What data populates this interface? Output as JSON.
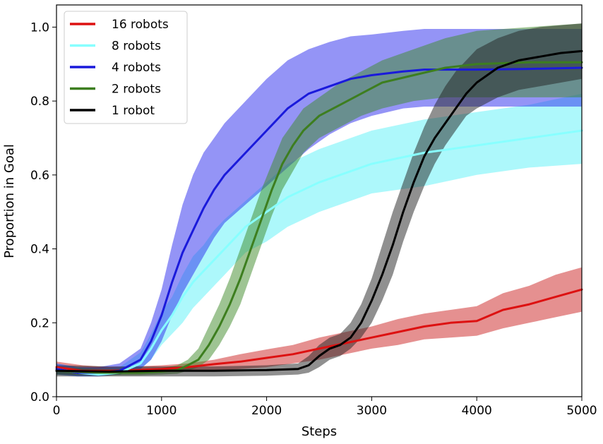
{
  "chart_data": {
    "type": "line",
    "title": "",
    "xlabel": "Steps",
    "ylabel": "Proportion in Goal",
    "xlim": [
      0,
      5000
    ],
    "ylim": [
      0.0,
      1.06
    ],
    "x_ticks": [
      0,
      1000,
      2000,
      3000,
      4000,
      5000
    ],
    "y_ticks": [
      0.0,
      0.2,
      0.4,
      0.6,
      0.8,
      1.0
    ],
    "x_tick_labels": [
      "0",
      "1000",
      "2000",
      "3000",
      "4000",
      "5000"
    ],
    "y_tick_labels": [
      "0.0",
      "0.2",
      "0.4",
      "0.6",
      "0.8",
      "1.0"
    ],
    "grid": false,
    "legend_position": "top-left",
    "band_opacity": 0.5,
    "series": [
      {
        "name": "16 robots",
        "color": "#dd1111",
        "band_color": "#cc2222",
        "x": [
          0,
          250,
          500,
          750,
          1000,
          1250,
          1500,
          1750,
          2000,
          2250,
          2500,
          2750,
          3000,
          3250,
          3500,
          3750,
          4000,
          4250,
          4500,
          4750,
          5000
        ],
        "mean": [
          0.08,
          0.07,
          0.07,
          0.072,
          0.075,
          0.08,
          0.088,
          0.095,
          0.105,
          0.115,
          0.13,
          0.145,
          0.16,
          0.175,
          0.19,
          0.2,
          0.205,
          0.235,
          0.25,
          0.27,
          0.29
        ],
        "lower": [
          0.06,
          0.06,
          0.06,
          0.065,
          0.068,
          0.068,
          0.07,
          0.075,
          0.08,
          0.09,
          0.1,
          0.115,
          0.13,
          0.14,
          0.155,
          0.16,
          0.165,
          0.185,
          0.2,
          0.215,
          0.23
        ],
        "upper": [
          0.095,
          0.085,
          0.08,
          0.082,
          0.085,
          0.09,
          0.1,
          0.115,
          0.128,
          0.14,
          0.16,
          0.175,
          0.19,
          0.21,
          0.225,
          0.235,
          0.245,
          0.28,
          0.3,
          0.33,
          0.35
        ]
      },
      {
        "name": "8 robots",
        "color": "#88ffff",
        "band_color": "#5cf2f7",
        "x": [
          0,
          200,
          400,
          600,
          800,
          900,
          1000,
          1100,
          1200,
          1300,
          1400,
          1500,
          1600,
          1800,
          2000,
          2200,
          2500,
          2800,
          3000,
          3500,
          4000,
          4500,
          5000
        ],
        "mean": [
          0.075,
          0.065,
          0.06,
          0.065,
          0.09,
          0.13,
          0.18,
          0.22,
          0.27,
          0.31,
          0.34,
          0.37,
          0.4,
          0.46,
          0.5,
          0.54,
          0.58,
          0.61,
          0.63,
          0.66,
          0.68,
          0.7,
          0.72
        ],
        "lower": [
          0.06,
          0.055,
          0.055,
          0.06,
          0.075,
          0.1,
          0.14,
          0.17,
          0.2,
          0.24,
          0.27,
          0.3,
          0.33,
          0.39,
          0.42,
          0.46,
          0.5,
          0.53,
          0.55,
          0.57,
          0.6,
          0.62,
          0.63
        ],
        "upper": [
          0.09,
          0.08,
          0.075,
          0.08,
          0.12,
          0.17,
          0.23,
          0.27,
          0.33,
          0.38,
          0.41,
          0.45,
          0.48,
          0.53,
          0.58,
          0.63,
          0.67,
          0.7,
          0.72,
          0.75,
          0.77,
          0.79,
          0.82
        ]
      },
      {
        "name": "4 robots",
        "color": "#1a1adb",
        "band_color": "#2a2aee",
        "x": [
          0,
          200,
          400,
          600,
          800,
          900,
          1000,
          1100,
          1200,
          1300,
          1400,
          1500,
          1600,
          1800,
          2000,
          2200,
          2400,
          2600,
          2800,
          3000,
          3300,
          3500,
          4000,
          4500,
          5000
        ],
        "mean": [
          0.075,
          0.065,
          0.065,
          0.07,
          0.1,
          0.15,
          0.22,
          0.31,
          0.39,
          0.45,
          0.51,
          0.56,
          0.6,
          0.66,
          0.72,
          0.78,
          0.82,
          0.84,
          0.86,
          0.87,
          0.88,
          0.885,
          0.885,
          0.887,
          0.89
        ],
        "lower": [
          0.06,
          0.055,
          0.055,
          0.06,
          0.075,
          0.1,
          0.15,
          0.22,
          0.28,
          0.33,
          0.38,
          0.43,
          0.47,
          0.52,
          0.57,
          0.62,
          0.67,
          0.71,
          0.74,
          0.76,
          0.78,
          0.785,
          0.785,
          0.785,
          0.785
        ],
        "upper": [
          0.09,
          0.08,
          0.08,
          0.09,
          0.13,
          0.2,
          0.29,
          0.41,
          0.52,
          0.6,
          0.66,
          0.7,
          0.74,
          0.8,
          0.86,
          0.91,
          0.94,
          0.96,
          0.975,
          0.98,
          0.99,
          0.995,
          0.995,
          0.995,
          0.995
        ]
      },
      {
        "name": "2 robots",
        "color": "#3d7e1f",
        "band_color": "#3d8a28",
        "x": [
          0,
          400,
          800,
          1000,
          1150,
          1250,
          1350,
          1450,
          1550,
          1650,
          1750,
          1850,
          1950,
          2050,
          2150,
          2250,
          2350,
          2500,
          2700,
          2900,
          3100,
          3400,
          3700,
          4000,
          4500,
          5000
        ],
        "mean": [
          0.07,
          0.065,
          0.065,
          0.068,
          0.072,
          0.085,
          0.1,
          0.14,
          0.19,
          0.25,
          0.32,
          0.4,
          0.48,
          0.56,
          0.63,
          0.68,
          0.72,
          0.76,
          0.79,
          0.82,
          0.85,
          0.87,
          0.89,
          0.9,
          0.905,
          0.905
        ],
        "lower": [
          0.06,
          0.058,
          0.058,
          0.06,
          0.062,
          0.07,
          0.08,
          0.1,
          0.14,
          0.19,
          0.25,
          0.33,
          0.41,
          0.49,
          0.56,
          0.61,
          0.66,
          0.7,
          0.73,
          0.76,
          0.78,
          0.8,
          0.81,
          0.81,
          0.81,
          0.81
        ],
        "upper": [
          0.08,
          0.075,
          0.075,
          0.078,
          0.085,
          0.1,
          0.13,
          0.19,
          0.25,
          0.32,
          0.4,
          0.48,
          0.56,
          0.63,
          0.7,
          0.74,
          0.78,
          0.81,
          0.85,
          0.88,
          0.91,
          0.94,
          0.97,
          0.99,
          1.0,
          1.01
        ]
      },
      {
        "name": "1 robot",
        "color": "#000000",
        "band_color": "#222222",
        "x": [
          0,
          500,
          1000,
          1500,
          2000,
          2300,
          2400,
          2500,
          2600,
          2700,
          2800,
          2900,
          3000,
          3100,
          3200,
          3300,
          3400,
          3500,
          3600,
          3700,
          3800,
          3900,
          4000,
          4200,
          4400,
          4600,
          4800,
          5000
        ],
        "mean": [
          0.07,
          0.068,
          0.07,
          0.07,
          0.072,
          0.075,
          0.085,
          0.11,
          0.13,
          0.14,
          0.16,
          0.2,
          0.26,
          0.33,
          0.41,
          0.5,
          0.58,
          0.65,
          0.7,
          0.74,
          0.78,
          0.82,
          0.85,
          0.89,
          0.91,
          0.92,
          0.93,
          0.935
        ],
        "lower": [
          0.055,
          0.055,
          0.055,
          0.055,
          0.057,
          0.06,
          0.065,
          0.08,
          0.1,
          0.11,
          0.13,
          0.16,
          0.2,
          0.26,
          0.33,
          0.42,
          0.5,
          0.57,
          0.63,
          0.68,
          0.72,
          0.76,
          0.78,
          0.81,
          0.83,
          0.84,
          0.85,
          0.86
        ],
        "upper": [
          0.085,
          0.082,
          0.082,
          0.082,
          0.085,
          0.09,
          0.11,
          0.14,
          0.16,
          0.17,
          0.2,
          0.25,
          0.32,
          0.41,
          0.5,
          0.58,
          0.66,
          0.73,
          0.79,
          0.84,
          0.88,
          0.91,
          0.94,
          0.97,
          0.99,
          1.0,
          1.005,
          1.01
        ]
      }
    ]
  }
}
